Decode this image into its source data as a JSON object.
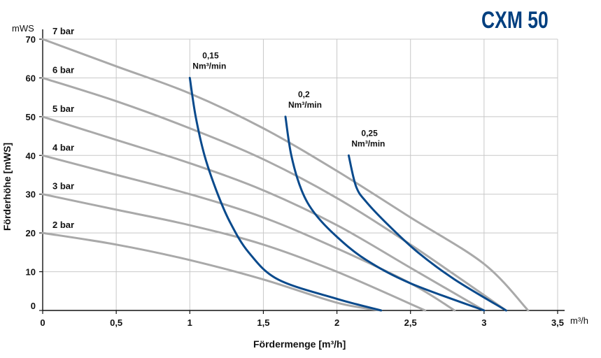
{
  "brand": "CXM 50",
  "chart_data": {
    "type": "line",
    "xlabel": "Fördermenge [m³/h]",
    "ylabel": "Förderhöhe [mWS]",
    "x_unit": "m³/h",
    "y_unit": "mWS",
    "xlim": [
      0,
      3.5
    ],
    "ylim": [
      0,
      70
    ],
    "x_ticks": [
      "0",
      "0,5",
      "1",
      "1,5",
      "2",
      "2,5",
      "3",
      "3,5"
    ],
    "y_ticks": [
      "0",
      "10",
      "20",
      "30",
      "40",
      "50",
      "60",
      "70"
    ],
    "grid": true,
    "series": [
      {
        "name": "7 bar",
        "kind": "pressure",
        "color": "#a9a9a9",
        "points": [
          [
            0,
            70
          ],
          [
            0.5,
            63
          ],
          [
            1,
            56
          ],
          [
            1.5,
            47
          ],
          [
            2,
            36
          ],
          [
            2.5,
            24
          ],
          [
            3,
            12
          ],
          [
            3.3,
            0
          ]
        ]
      },
      {
        "name": "6 bar",
        "kind": "pressure",
        "color": "#a9a9a9",
        "points": [
          [
            0,
            60
          ],
          [
            0.5,
            54
          ],
          [
            1,
            47
          ],
          [
            1.5,
            39
          ],
          [
            2,
            29
          ],
          [
            2.5,
            17
          ],
          [
            3.15,
            0
          ]
        ]
      },
      {
        "name": "5 bar",
        "kind": "pressure",
        "color": "#a9a9a9",
        "points": [
          [
            0,
            50
          ],
          [
            0.5,
            44
          ],
          [
            1,
            38
          ],
          [
            1.5,
            31
          ],
          [
            2,
            22
          ],
          [
            2.5,
            11
          ],
          [
            3,
            0
          ]
        ]
      },
      {
        "name": "4 bar",
        "kind": "pressure",
        "color": "#a9a9a9",
        "points": [
          [
            0,
            40
          ],
          [
            0.5,
            35
          ],
          [
            1,
            30
          ],
          [
            1.5,
            24
          ],
          [
            2,
            16
          ],
          [
            2.5,
            7
          ],
          [
            2.8,
            0
          ]
        ]
      },
      {
        "name": "3 bar",
        "kind": "pressure",
        "color": "#a9a9a9",
        "points": [
          [
            0,
            30
          ],
          [
            0.5,
            26
          ],
          [
            1,
            22
          ],
          [
            1.5,
            17
          ],
          [
            2,
            10
          ],
          [
            2.6,
            0
          ]
        ]
      },
      {
        "name": "2 bar",
        "kind": "pressure",
        "color": "#a9a9a9",
        "points": [
          [
            0,
            20
          ],
          [
            0.5,
            17
          ],
          [
            1,
            13
          ],
          [
            1.5,
            8
          ],
          [
            2,
            2
          ],
          [
            2.3,
            0
          ]
        ]
      },
      {
        "name": "0,15 Nm³/min",
        "label_lines": [
          "0,15",
          "Nm³/min"
        ],
        "kind": "air",
        "color": "#0a4a8c",
        "points": [
          [
            1,
            60
          ],
          [
            1.04,
            50
          ],
          [
            1.1,
            40
          ],
          [
            1.18,
            31
          ],
          [
            1.27,
            23
          ],
          [
            1.4,
            15
          ],
          [
            1.6,
            8
          ],
          [
            2,
            3
          ],
          [
            2.3,
            0
          ]
        ]
      },
      {
        "name": "0,2 Nm³/min",
        "label_lines": [
          "0,2",
          "Nm³/min"
        ],
        "kind": "air",
        "color": "#0a4a8c",
        "points": [
          [
            1.65,
            50
          ],
          [
            1.69,
            40
          ],
          [
            1.76,
            31
          ],
          [
            1.85,
            25
          ],
          [
            2,
            19
          ],
          [
            2.2,
            13
          ],
          [
            2.5,
            7
          ],
          [
            3,
            0
          ]
        ]
      },
      {
        "name": "0,25 Nm³/min",
        "label_lines": [
          "0,25",
          "Nm³/min"
        ],
        "kind": "air",
        "color": "#0a4a8c",
        "points": [
          [
            2.08,
            40
          ],
          [
            2.13,
            32
          ],
          [
            2.2,
            28
          ],
          [
            2.35,
            22
          ],
          [
            2.55,
            15
          ],
          [
            2.8,
            8
          ],
          [
            3.15,
            0
          ]
        ]
      }
    ]
  }
}
